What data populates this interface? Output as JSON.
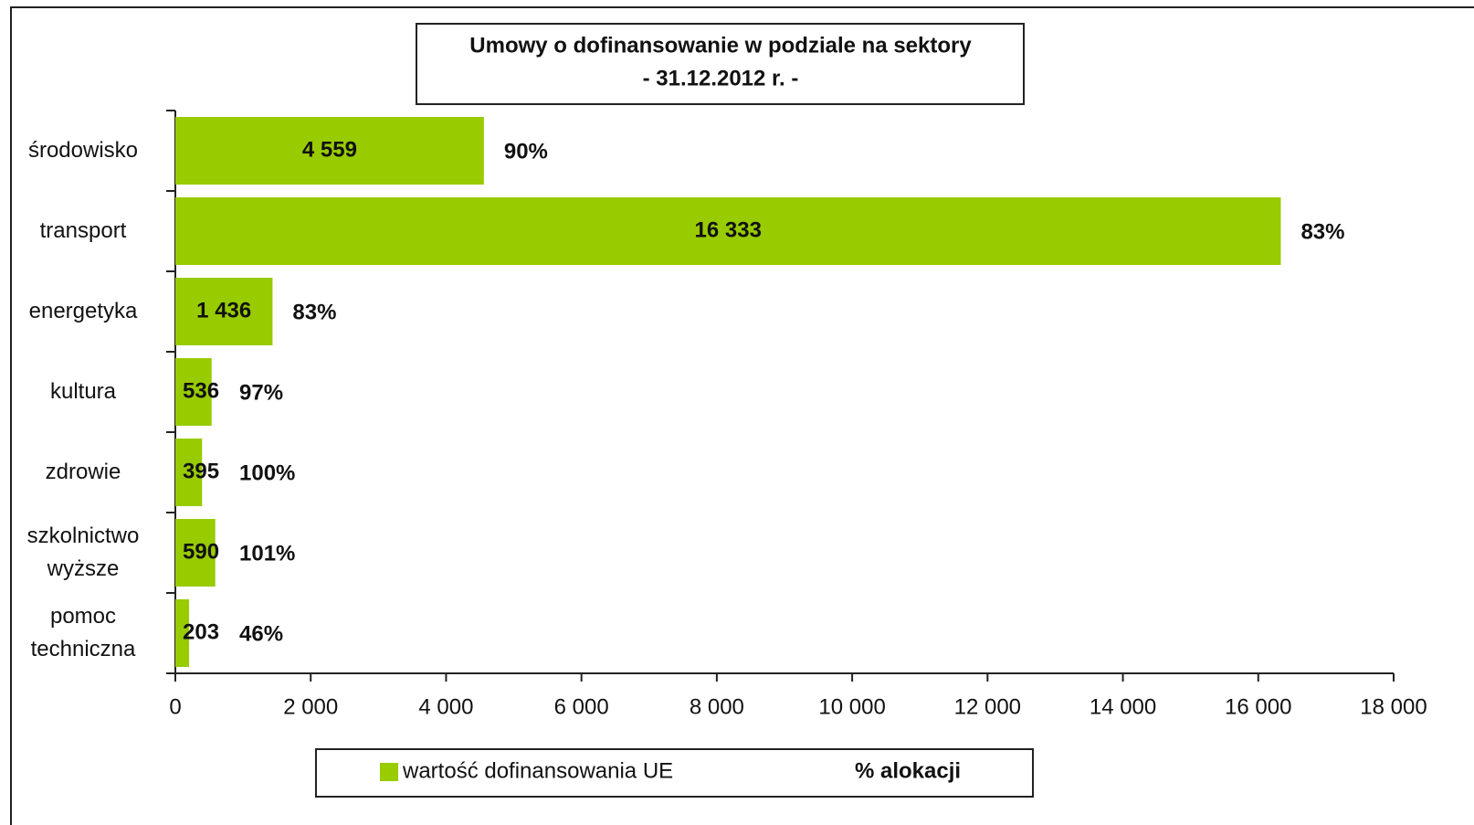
{
  "chart_data": {
    "type": "bar",
    "orientation": "horizontal",
    "title": "Umowy o dofinansowanie w podziale na sektory",
    "subtitle": "- 31.12.2012 r. -",
    "categories": [
      "środowisko",
      "transport",
      "energetyka",
      "kultura",
      "zdrowie",
      "szkolnictwo wyższe",
      "pomoc techniczna"
    ],
    "series": [
      {
        "name": "wartość dofinansowania UE",
        "color": "#99cc00",
        "values": [
          4559,
          16333,
          1436,
          536,
          395,
          590,
          203
        ],
        "value_labels": [
          "4 559",
          "16 333",
          "1 436",
          "536",
          "395",
          "590",
          "203"
        ]
      },
      {
        "name": "% alokacji",
        "color": "#e3242b",
        "values": [
          90,
          83,
          83,
          97,
          100,
          101,
          46
        ],
        "value_labels": [
          "90%",
          "83%",
          "83%",
          "97%",
          "100%",
          "101%",
          "46%"
        ]
      }
    ],
    "xlim": [
      0,
      18000
    ],
    "xticks": [
      0,
      {
        "value": 2000,
        "label": "2 000"
      },
      {
        "value": 4000,
        "label": "4 000"
      },
      {
        "value": 6000,
        "label": "6 000"
      },
      {
        "value": 8000,
        "label": "8 000"
      },
      {
        "value": 10000,
        "label": "10 000"
      },
      {
        "value": 12000,
        "label": "12 000"
      },
      {
        "value": 14000,
        "label": "14 000"
      },
      {
        "value": 16000,
        "label": "16 000"
      },
      {
        "value": 18000,
        "label": "18 000"
      }
    ],
    "legend": "bottom"
  }
}
